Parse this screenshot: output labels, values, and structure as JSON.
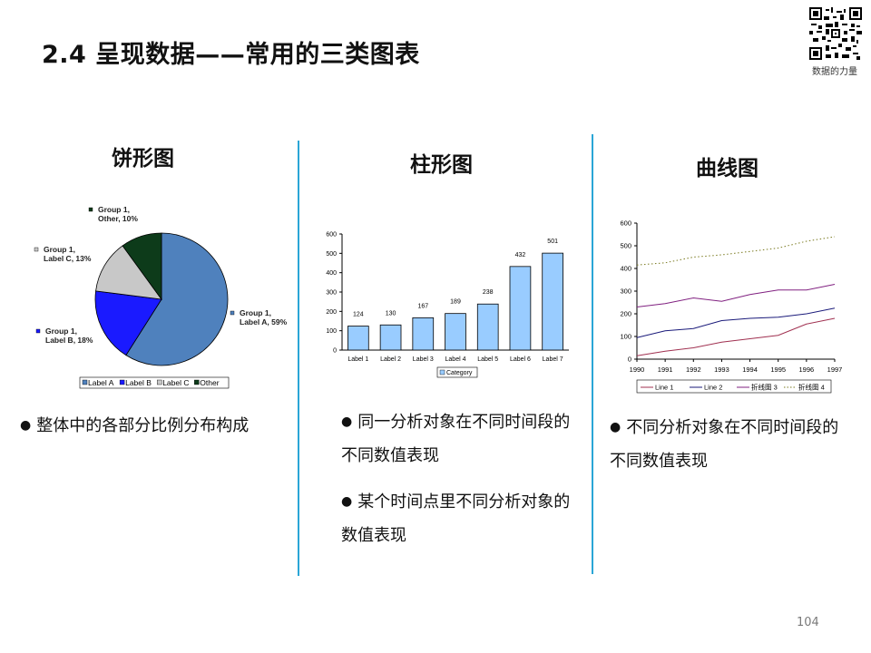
{
  "slide": {
    "title": "2.4 呈现数据——常用的三类图表",
    "qr_caption": "数据的力量",
    "page_number": "104"
  },
  "columns": [
    {
      "heading": "饼形图",
      "bullets": [
        "整体中的各部分比例分布构成"
      ]
    },
    {
      "heading": "柱形图",
      "bullets": [
        "同一分析对象在不同时间段的不同数值表现",
        "某个时间点里不同分析对象的数值表现"
      ]
    },
    {
      "heading": "曲线图",
      "bullets": [
        "不同分析对象在不同时间段的不同数值表现"
      ]
    }
  ],
  "chart_data": [
    {
      "type": "pie",
      "labels": [
        "Label A",
        "Label B",
        "Label C",
        "Other"
      ],
      "values": [
        59,
        18,
        13,
        10
      ],
      "slice_labels": [
        [
          "Group 1,",
          "Label A, 59%"
        ],
        [
          "Group 1,",
          "Label B, 18%"
        ],
        [
          "Group 1,",
          "Label C, 13%"
        ],
        [
          "Group 1,",
          "Other, 10%"
        ]
      ],
      "colors": [
        "#4f81bd",
        "#1a1aff",
        "#c8c8c8",
        "#0d3b1a"
      ],
      "legend": "bottom"
    },
    {
      "type": "bar",
      "categories": [
        "Label 1",
        "Label 2",
        "Label 3",
        "Label 4",
        "Label 5",
        "Label 6",
        "Label 7"
      ],
      "values": [
        124,
        130,
        167,
        189,
        238,
        432,
        501
      ],
      "series_name": "Category",
      "ylim": [
        0,
        600
      ],
      "yticks": [
        0,
        100,
        200,
        300,
        400,
        500,
        600
      ],
      "color": "#99ccff",
      "legend": "bottom"
    },
    {
      "type": "line",
      "x": [
        "1990",
        "1991",
        "1992",
        "1993",
        "1994",
        "1995",
        "1996",
        "1997"
      ],
      "ylim": [
        0,
        600
      ],
      "yticks": [
        0,
        100,
        200,
        300,
        400,
        500,
        600
      ],
      "series": [
        {
          "name": "Line 1",
          "values": [
            15,
            35,
            50,
            75,
            90,
            105,
            155,
            180
          ],
          "color": "#a03050"
        },
        {
          "name": "Line 2",
          "values": [
            95,
            125,
            135,
            170,
            180,
            185,
            200,
            225
          ],
          "color": "#1a1a7a"
        },
        {
          "name": "折线图 3",
          "values": [
            230,
            245,
            270,
            255,
            285,
            305,
            305,
            330
          ],
          "color": "#802080"
        },
        {
          "name": "折线图 4",
          "values": [
            415,
            425,
            450,
            460,
            475,
            490,
            520,
            540
          ],
          "color": "#7a7a20"
        }
      ],
      "legend": "bottom"
    }
  ]
}
